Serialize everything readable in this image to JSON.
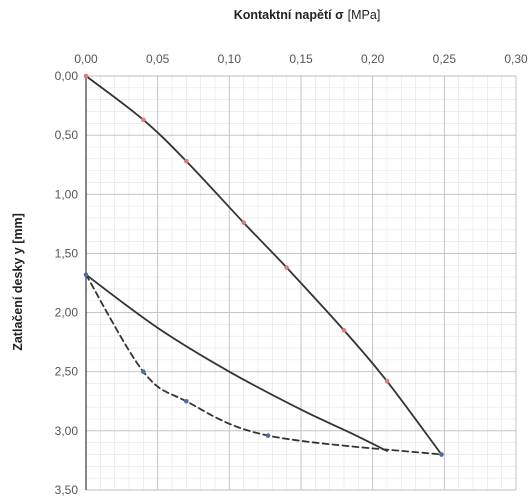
{
  "chart_data": {
    "type": "line",
    "title": "",
    "xlabel_bold": "Kontaktní napětí σ",
    "xlabel_unit": "[MPa]",
    "ylabel": "Zatlačení desky y [mm]",
    "xlim": [
      0,
      0.3
    ],
    "ylim": [
      0,
      3.5
    ],
    "y_inverted": true,
    "x_axis_position": "top",
    "grid": true,
    "x_ticks": [
      "0,00",
      "0,05",
      "0,10",
      "0,15",
      "0,20",
      "0,25",
      "0,30"
    ],
    "y_ticks": [
      "0,00",
      "0,50",
      "1,00",
      "1,50",
      "2,00",
      "2,50",
      "3,00",
      "3,50"
    ],
    "series": [
      {
        "style": "solid",
        "color": "#333333",
        "marker_color": "#e07a7a",
        "points": [
          [
            0,
            0
          ],
          [
            0.04,
            0.37
          ],
          [
            0.07,
            0.72
          ],
          [
            0.11,
            1.24
          ],
          [
            0.14,
            1.62
          ],
          [
            0.18,
            2.15
          ],
          [
            0.21,
            2.58
          ],
          [
            0.248,
            3.2
          ]
        ]
      },
      {
        "style": "solid",
        "color": "#333333",
        "points": [
          [
            0,
            1.68
          ],
          [
            0.05,
            2.13
          ],
          [
            0.1,
            2.5
          ],
          [
            0.15,
            2.82
          ],
          [
            0.185,
            3.02
          ],
          [
            0.21,
            3.17
          ]
        ]
      },
      {
        "style": "dashed",
        "color": "#333333",
        "marker_color": "#4a6fa5",
        "points": [
          [
            0,
            1.68
          ],
          [
            0.04,
            2.5
          ],
          [
            0.07,
            2.75
          ],
          [
            0.127,
            3.04
          ],
          [
            0.248,
            3.2
          ]
        ]
      }
    ]
  }
}
